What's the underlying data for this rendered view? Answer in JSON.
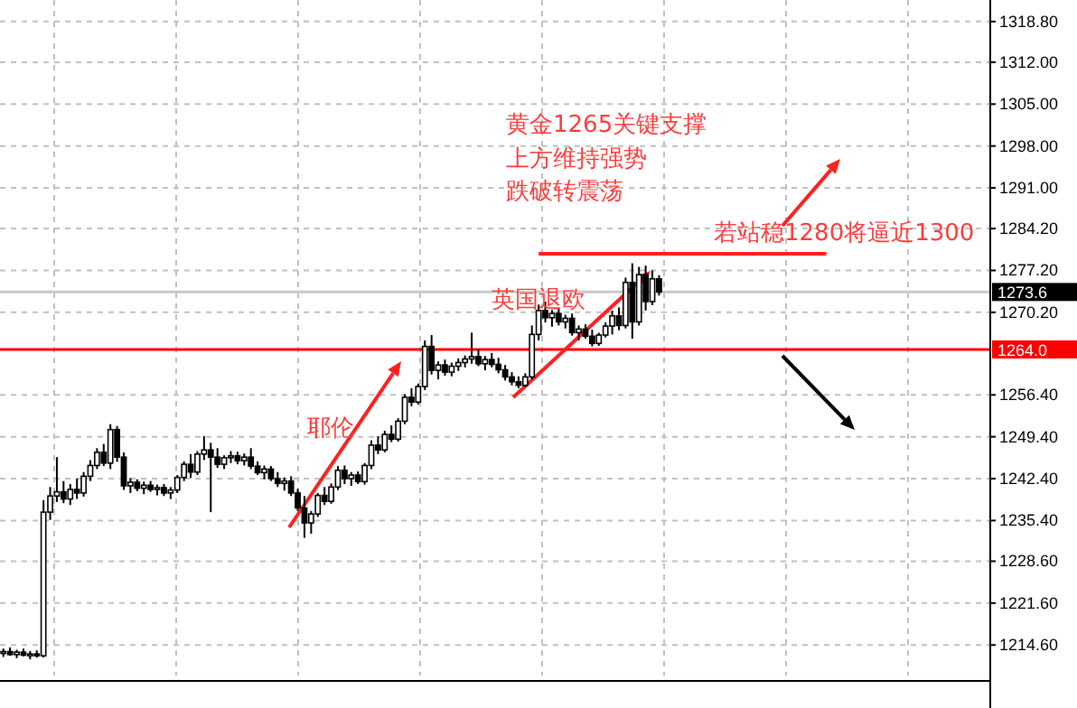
{
  "chart_data": {
    "type": "candlestick",
    "color": "#000000",
    "tick_labels": "y",
    "grid": true,
    "categories": [
      null,
      null,
      null,
      null,
      null,
      null,
      null,
      null,
      null,
      null,
      null,
      null,
      null,
      null,
      null,
      null,
      null,
      null,
      null,
      null,
      null,
      null,
      null,
      null,
      null,
      null,
      null,
      null,
      null,
      null,
      null,
      null,
      null,
      null,
      null,
      null,
      null,
      null,
      null,
      null,
      null,
      null,
      null,
      null,
      null,
      null,
      null,
      null,
      null,
      null,
      null,
      null,
      null,
      null,
      null,
      null,
      null,
      null,
      null,
      null,
      null,
      null,
      null,
      null,
      null,
      null,
      null,
      null,
      null,
      null,
      null,
      null,
      null,
      null,
      null,
      null,
      null,
      null,
      null,
      null,
      null,
      null,
      null,
      null,
      null,
      null,
      null,
      null,
      null,
      null,
      null,
      null,
      null,
      null,
      null,
      null,
      null,
      null,
      null,
      null,
      null,
      null,
      null,
      null,
      null,
      null,
      null,
      null,
      null,
      null,
      null,
      null,
      null,
      null,
      null,
      null,
      null,
      null,
      null,
      null,
      null,
      null,
      null,
      null,
      null,
      null,
      null,
      null,
      null,
      null,
      null,
      null,
      null,
      null,
      null,
      null,
      null,
      null,
      null,
      null,
      null,
      null,
      null,
      null,
      null,
      null,
      null,
      null
    ],
    "ohlc": [
      [
        1213.2,
        1214,
        1212.6,
        1213.5
      ],
      [
        1213.5,
        1214.2,
        1212.8,
        1213
      ],
      [
        1213,
        1213.8,
        1212.4,
        1213.4
      ],
      [
        1213.4,
        1214,
        1212.7,
        1212.9
      ],
      [
        1212.9,
        1213.6,
        1212.2,
        1213.1
      ],
      [
        1213.1,
        1213.7,
        1212.5,
        1212.8
      ],
      [
        1212.8,
        1238.8,
        1212.5,
        1236.8
      ],
      [
        1236.8,
        1241,
        1235.5,
        1239.5
      ],
      [
        1239.5,
        1246,
        1238.5,
        1240.2
      ],
      [
        1240.2,
        1242,
        1238.3,
        1239
      ],
      [
        1239,
        1241.5,
        1238,
        1240.6
      ],
      [
        1240.6,
        1242.4,
        1239,
        1240
      ],
      [
        1240,
        1243.5,
        1239.4,
        1242.8
      ],
      [
        1242.8,
        1245.5,
        1242,
        1244.6
      ],
      [
        1244.6,
        1247.5,
        1244,
        1246.8
      ],
      [
        1246.8,
        1248.2,
        1244.5,
        1245
      ],
      [
        1245,
        1251.5,
        1244,
        1250.6
      ],
      [
        1250.6,
        1251.2,
        1245.2,
        1246
      ],
      [
        1246,
        1246.8,
        1240.5,
        1241.2
      ],
      [
        1241.2,
        1242.5,
        1240,
        1241.8
      ],
      [
        1241.8,
        1242.3,
        1240.3,
        1240.8
      ],
      [
        1240.8,
        1241.9,
        1239.8,
        1241.3
      ],
      [
        1241.3,
        1242,
        1240.2,
        1240.6
      ],
      [
        1240.6,
        1241.4,
        1239.6,
        1240.9
      ],
      [
        1240.9,
        1241.5,
        1239.5,
        1240
      ],
      [
        1240,
        1241,
        1239,
        1240.5
      ],
      [
        1240.5,
        1243,
        1240,
        1242.6
      ],
      [
        1242.6,
        1245.3,
        1242,
        1244.8
      ],
      [
        1244.8,
        1246.5,
        1242.5,
        1243.5
      ],
      [
        1243.5,
        1247,
        1243,
        1246.5
      ],
      [
        1246.5,
        1249.5,
        1245.5,
        1247.2
      ],
      [
        1247.2,
        1248.4,
        1236.8,
        1246
      ],
      [
        1246,
        1247.5,
        1244.2,
        1244.8
      ],
      [
        1244.8,
        1246.3,
        1244,
        1245.9
      ],
      [
        1245.9,
        1247,
        1245,
        1246.2
      ],
      [
        1246.2,
        1246.9,
        1244.8,
        1245.4
      ],
      [
        1245.4,
        1246.6,
        1244.6,
        1246
      ],
      [
        1246,
        1247.5,
        1244,
        1244.5
      ],
      [
        1244.5,
        1245.3,
        1243,
        1243.4
      ],
      [
        1243.4,
        1244.6,
        1242.3,
        1244
      ],
      [
        1244,
        1244.5,
        1242,
        1242.4
      ],
      [
        1242.4,
        1243.5,
        1241,
        1241.6
      ],
      [
        1241.6,
        1242.6,
        1240.4,
        1242
      ],
      [
        1242,
        1242.8,
        1239.5,
        1240
      ],
      [
        1240,
        1240.7,
        1237,
        1237.5
      ],
      [
        1237.5,
        1239.5,
        1232.5,
        1235
      ],
      [
        1235,
        1237,
        1233.2,
        1236.5
      ],
      [
        1236.5,
        1240,
        1236,
        1239.6
      ],
      [
        1239.6,
        1241,
        1238,
        1238.6
      ],
      [
        1238.6,
        1241.6,
        1238.2,
        1241
      ],
      [
        1241,
        1244.5,
        1240.5,
        1243.8
      ],
      [
        1243.8,
        1244.6,
        1241.5,
        1242.4
      ],
      [
        1242.4,
        1243.5,
        1241.2,
        1243
      ],
      [
        1243,
        1243.6,
        1241.5,
        1241.9
      ],
      [
        1241.9,
        1245,
        1241.4,
        1244.6
      ],
      [
        1244.6,
        1248.8,
        1244,
        1248
      ],
      [
        1248,
        1249.5,
        1246.5,
        1247.2
      ],
      [
        1247.2,
        1250.4,
        1246.8,
        1249.8
      ],
      [
        1249.8,
        1251.3,
        1248.5,
        1249
      ],
      [
        1249,
        1252.5,
        1248.6,
        1252
      ],
      [
        1252,
        1256.5,
        1251.5,
        1256
      ],
      [
        1256,
        1257.5,
        1254.5,
        1255.2
      ],
      [
        1255.2,
        1258.3,
        1254.8,
        1257.8
      ],
      [
        1257.8,
        1265.5,
        1257.2,
        1264.5
      ],
      [
        1264.5,
        1266.4,
        1259.8,
        1260.5
      ],
      [
        1260.5,
        1262,
        1259,
        1261.4
      ],
      [
        1261.4,
        1262.3,
        1259.6,
        1260.2
      ],
      [
        1260.2,
        1261.8,
        1259.5,
        1261.2
      ],
      [
        1261.2,
        1262.5,
        1260.4,
        1261.8
      ],
      [
        1261.8,
        1263,
        1261,
        1262.4
      ],
      [
        1262.4,
        1266.8,
        1261.6,
        1262.8
      ],
      [
        1262.8,
        1264,
        1261.2,
        1261.6
      ],
      [
        1261.6,
        1262.9,
        1260.5,
        1262.3
      ],
      [
        1262.3,
        1263.4,
        1261,
        1261.5
      ],
      [
        1261.5,
        1262.6,
        1260,
        1260.6
      ],
      [
        1260.6,
        1261.4,
        1258.8,
        1259.4
      ],
      [
        1259.4,
        1260.2,
        1258,
        1258.6
      ],
      [
        1258.6,
        1259.5,
        1257.5,
        1258
      ],
      [
        1258,
        1260,
        1257.7,
        1259.4
      ],
      [
        1259.4,
        1268,
        1259,
        1266.5
      ],
      [
        1266.5,
        1271.5,
        1265.5,
        1270.5
      ],
      [
        1270.5,
        1272,
        1268.5,
        1269.3
      ],
      [
        1269.3,
        1270.6,
        1267.8,
        1270
      ],
      [
        1270,
        1270.8,
        1268,
        1268.6
      ],
      [
        1268.6,
        1269.8,
        1267.5,
        1269.2
      ],
      [
        1269.2,
        1270,
        1266.3,
        1266.8
      ],
      [
        1266.8,
        1268,
        1265.5,
        1267.4
      ],
      [
        1267.4,
        1268.2,
        1265.8,
        1266.2
      ],
      [
        1266.2,
        1267.3,
        1264.5,
        1265
      ],
      [
        1265,
        1266.8,
        1264.6,
        1266.4
      ],
      [
        1266.4,
        1268.5,
        1266,
        1267.9
      ],
      [
        1267.9,
        1270.5,
        1266.5,
        1269.6
      ],
      [
        1269.6,
        1271,
        1267.2,
        1268
      ],
      [
        1268,
        1276,
        1267.5,
        1275.2
      ],
      [
        1275.2,
        1278.4,
        1265.8,
        1268.6
      ],
      [
        1268.6,
        1277.8,
        1268,
        1276.5
      ],
      [
        1276.5,
        1278,
        1270.5,
        1272
      ],
      [
        1272,
        1277.2,
        1271.4,
        1275.8
      ],
      [
        1275.8,
        1276.4,
        1273,
        1273.6
      ],
      null,
      null,
      null,
      null,
      null,
      null,
      null,
      null,
      null,
      null,
      null,
      null,
      null,
      null,
      null,
      null,
      null,
      null,
      null,
      null,
      null,
      null,
      null,
      null,
      null,
      null,
      null,
      null,
      null,
      null,
      null,
      null,
      null,
      null,
      null,
      null,
      null,
      null,
      null,
      null,
      null,
      null,
      null,
      null,
      null,
      null,
      null,
      null,
      null
    ],
    "series": [
      {
        "type": "line",
        "color": "#ff2020",
        "values": [
          null,
          null,
          null,
          null,
          null,
          null,
          null,
          null,
          null,
          null,
          null,
          null,
          null,
          null,
          null,
          null,
          null,
          null,
          null,
          null,
          null,
          null,
          null,
          null,
          null,
          null,
          null,
          null,
          null,
          null,
          null,
          null,
          null,
          null,
          null,
          null,
          null,
          null,
          null,
          null,
          null,
          null,
          null,
          null,
          null,
          null,
          null,
          null,
          null,
          null,
          null,
          null,
          null,
          null,
          null,
          null,
          null,
          null,
          null,
          null,
          null,
          null,
          null,
          null,
          null,
          null,
          null,
          null,
          null,
          null,
          null,
          null,
          null,
          null,
          null,
          null,
          null,
          null,
          null,
          null,
          1280,
          1280,
          1280,
          1280,
          1280,
          1280,
          1280,
          1280,
          1280,
          1280,
          1280,
          1280,
          1280,
          1280,
          1280,
          1280,
          1280,
          1280,
          1280,
          1280,
          1280,
          1280,
          1280,
          1280,
          1280,
          1280,
          1280,
          1280,
          1280,
          1280,
          1280,
          1280,
          1280,
          1280,
          1280,
          1280,
          1280,
          1280,
          1280,
          1280,
          1280,
          1280,
          1280,
          1280,
          null,
          null,
          null,
          null,
          null,
          null,
          null,
          null,
          null,
          null,
          null,
          null,
          null,
          null,
          null,
          null,
          null,
          null,
          null,
          null,
          null,
          null,
          null,
          null
        ]
      }
    ],
    "ylim": [
      1209.5,
      1322.4
    ],
    "yticks": [
      {
        "value": 1318.8,
        "label": "1318.80"
      },
      {
        "value": 1312,
        "label": "1312.00"
      },
      {
        "value": 1305,
        "label": "1305.00"
      },
      {
        "value": 1298,
        "label": "1298.00"
      },
      {
        "value": 1291,
        "label": "1291.00"
      },
      {
        "value": 1284.2,
        "label": "1284.20"
      },
      {
        "value": 1277.2,
        "label": "1277.20"
      },
      {
        "value": 1270.2,
        "label": "1270.20"
      },
      {
        "value": 1256.4,
        "label": "1256.40"
      },
      {
        "value": 1249.4,
        "label": "1249.40"
      },
      {
        "value": 1242.4,
        "label": "1242.40"
      },
      {
        "value": 1235.4,
        "label": "1235.40"
      },
      {
        "value": 1228.6,
        "label": "1228.60"
      },
      {
        "value": 1221.6,
        "label": "1221.60"
      },
      {
        "value": 1214.6,
        "label": "1214.60"
      }
    ],
    "ref_lines": [
      {
        "axis": "y",
        "value": 1264,
        "label": "1264.0",
        "color": "#ff0000"
      },
      {
        "axis": "y",
        "value": 1273.6,
        "label": "1273.6",
        "color": "#c8c8c8"
      }
    ],
    "annotations": [
      "黄金1265关键支撑",
      "上方维持强势",
      "跌破转震荡",
      "若站稳1280将逼近1300",
      "英国退欧",
      "耶伦"
    ]
  }
}
